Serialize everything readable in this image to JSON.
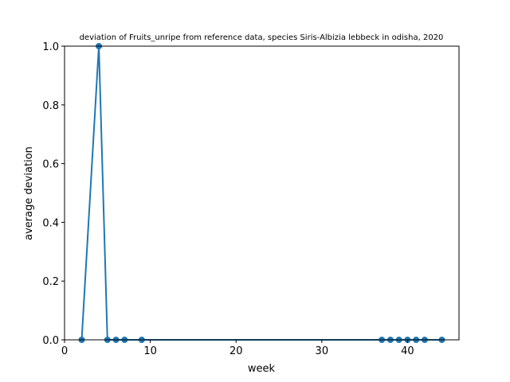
{
  "chart_data": {
    "type": "line",
    "title": "deviation of Fruits_unripe from reference data, species Siris-Albizia lebbeck in odisha, 2020",
    "xlabel": "week",
    "ylabel": "average deviation",
    "xlim": [
      0,
      46
    ],
    "ylim": [
      0,
      1.0
    ],
    "xticks": [
      0,
      10,
      20,
      30,
      40
    ],
    "yticks": [
      0.0,
      0.2,
      0.4,
      0.6,
      0.8,
      1.0
    ],
    "ytick_labels": [
      "0.0",
      "0.2",
      "0.4",
      "0.6",
      "0.8",
      "1.0"
    ],
    "grid": false,
    "series": [
      {
        "color": "#1f77b4",
        "x": [
          2,
          4,
          5,
          6,
          7,
          9,
          37,
          38,
          39,
          40,
          41,
          42,
          44
        ],
        "y": [
          0,
          1,
          0,
          0,
          0,
          0,
          0,
          0,
          0,
          0,
          0,
          0,
          0
        ]
      }
    ]
  }
}
